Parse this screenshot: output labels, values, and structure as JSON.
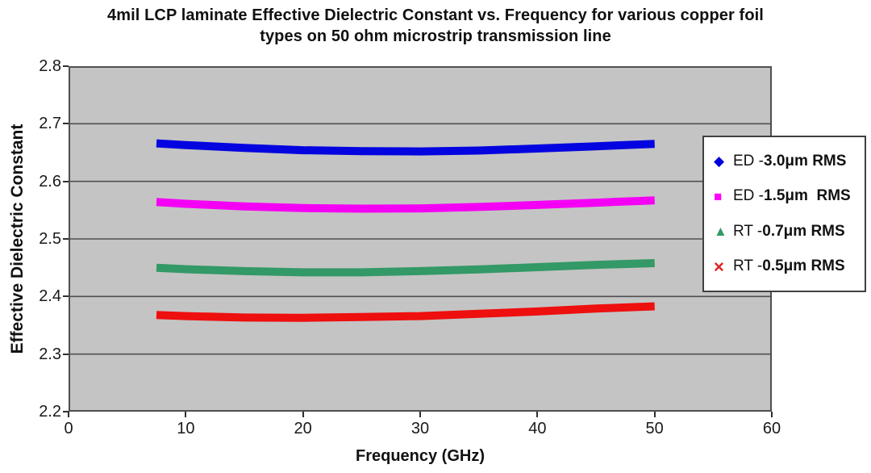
{
  "title": {
    "line1": "4mil LCP laminate Effective Dielectric Constant vs. Frequency for various copper foil",
    "line2": "types on 50 ohm microstrip transmission line"
  },
  "axes": {
    "x_label": "Frequency (GHz)",
    "y_label": "Effective Dielectric Constant"
  },
  "legend": {
    "items": [
      {
        "marker": "diamond",
        "color": "#0000dd",
        "prefix": "ED - ",
        "bold": "3.0μm RMS"
      },
      {
        "marker": "square",
        "color": "#ff00ff",
        "prefix": "ED - ",
        "bold": "1.5μm  RMS"
      },
      {
        "marker": "triangle",
        "color": "#339966",
        "prefix": "RT - ",
        "bold": "0.7μm RMS"
      },
      {
        "marker": "x",
        "color": "#dd2222",
        "prefix": "RT - ",
        "bold": "0.5μm RMS"
      }
    ]
  },
  "chart_data": {
    "type": "line",
    "title": "4mil LCP laminate Effective Dielectric Constant vs. Frequency for various copper foil types on 50 ohm microstrip transmission line",
    "xlabel": "Frequency (GHz)",
    "ylabel": "Effective Dielectric Constant",
    "xlim": [
      0,
      60
    ],
    "ylim": [
      2.2,
      2.8
    ],
    "xticks": [
      0,
      10,
      20,
      30,
      40,
      50,
      60
    ],
    "yticks": [
      2.2,
      2.3,
      2.4,
      2.5,
      2.6,
      2.7,
      2.8
    ],
    "grid": "horizontal",
    "plot_bg": "#c4c4c4",
    "legend_position": "right-overlap",
    "line_width": 10,
    "x": [
      7.5,
      10,
      15,
      20,
      25,
      30,
      35,
      40,
      45,
      50
    ],
    "series": [
      {
        "name": "ED - 3.0μm RMS",
        "color": "#0404e0",
        "marker": "diamond",
        "values": [
          2.666,
          2.663,
          2.658,
          2.654,
          2.6525,
          2.652,
          2.6535,
          2.657,
          2.661,
          2.665
        ]
      },
      {
        "name": "ED - 1.5μm RMS",
        "color": "#f400f4",
        "marker": "square",
        "values": [
          2.564,
          2.561,
          2.5565,
          2.5535,
          2.5525,
          2.553,
          2.5555,
          2.559,
          2.563,
          2.567
        ]
      },
      {
        "name": "RT - 0.7μm RMS",
        "color": "#339966",
        "marker": "triangle",
        "values": [
          2.45,
          2.4475,
          2.444,
          2.442,
          2.442,
          2.444,
          2.447,
          2.451,
          2.455,
          2.458
        ]
      },
      {
        "name": "RT - 0.5μm RMS",
        "color": "#ee0f0f",
        "marker": "x",
        "values": [
          2.368,
          2.366,
          2.3635,
          2.363,
          2.3645,
          2.366,
          2.37,
          2.374,
          2.379,
          2.383
        ]
      }
    ]
  }
}
